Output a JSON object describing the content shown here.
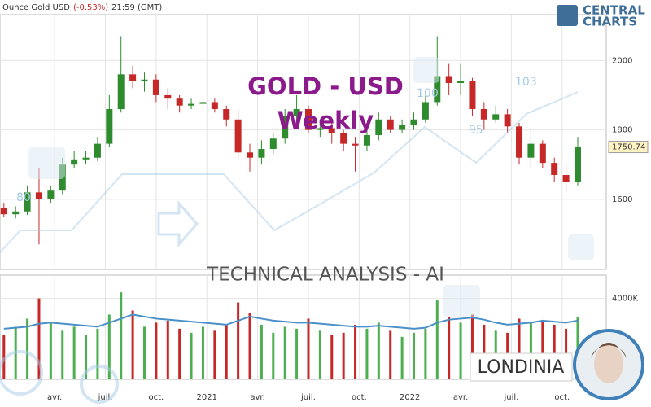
{
  "header": {
    "instrument": "Ounce Gold USD",
    "change": "(-0.53%)",
    "time": "21:59 (GMT)"
  },
  "branding": {
    "line1": "CENTRAL",
    "line2": "CHARTS",
    "footer": "LONDINIA"
  },
  "watermark": {
    "title": "GOLD - USD",
    "subtitle": "Weekly",
    "banner": "TECHNICAL  ANALYSIS - AI",
    "levels": [
      "80",
      "100",
      "95",
      "103"
    ]
  },
  "chart_data": [
    {
      "type": "candlestick",
      "up_color": "#2e8b2e",
      "down_color": "#c62828",
      "grid": true,
      "x": [
        0,
        3,
        6,
        9,
        12,
        15,
        18,
        21,
        24,
        27,
        30,
        33,
        36,
        39,
        42,
        45,
        48,
        51,
        54,
        57,
        60,
        63,
        66,
        69,
        72,
        75,
        78,
        81,
        84,
        87,
        90,
        93,
        96,
        99,
        102,
        105,
        108,
        111,
        114,
        117,
        120,
        123,
        126,
        129,
        132,
        135,
        138,
        141,
        144,
        147
      ],
      "open": [
        1575,
        1557,
        1565,
        1620,
        1600,
        1625,
        1700,
        1715,
        1720,
        1760,
        1860,
        1960,
        1940,
        1945,
        1900,
        1890,
        1870,
        1875,
        1880,
        1860,
        1830,
        1735,
        1720,
        1745,
        1775,
        1840,
        1860,
        1800,
        1805,
        1790,
        1760,
        1755,
        1785,
        1830,
        1800,
        1815,
        1830,
        1880,
        1955,
        1935,
        1940,
        1860,
        1830,
        1845,
        1810,
        1720,
        1760,
        1705,
        1670,
        1650
      ],
      "high": [
        1590,
        1580,
        1640,
        1690,
        1640,
        1720,
        1740,
        1740,
        1780,
        1900,
        2070,
        1985,
        1965,
        1960,
        1920,
        1900,
        1890,
        1900,
        1890,
        1870,
        1860,
        1760,
        1770,
        1790,
        1860,
        1900,
        1870,
        1830,
        1820,
        1800,
        1780,
        1800,
        1850,
        1840,
        1830,
        1850,
        1900,
        2070,
        1990,
        1990,
        1950,
        1880,
        1870,
        1860,
        1820,
        1800,
        1770,
        1720,
        1700,
        1780
      ],
      "low": [
        1550,
        1545,
        1555,
        1470,
        1590,
        1615,
        1690,
        1700,
        1710,
        1750,
        1850,
        1920,
        1910,
        1880,
        1860,
        1850,
        1860,
        1850,
        1850,
        1810,
        1720,
        1680,
        1700,
        1730,
        1760,
        1820,
        1790,
        1780,
        1760,
        1740,
        1680,
        1740,
        1770,
        1790,
        1790,
        1800,
        1820,
        1870,
        1900,
        1900,
        1840,
        1800,
        1820,
        1790,
        1700,
        1690,
        1690,
        1650,
        1620,
        1640
      ],
      "close": [
        1557,
        1565,
        1620,
        1600,
        1625,
        1700,
        1715,
        1720,
        1760,
        1860,
        1960,
        1940,
        1945,
        1900,
        1890,
        1870,
        1875,
        1880,
        1860,
        1830,
        1735,
        1720,
        1745,
        1775,
        1840,
        1860,
        1800,
        1805,
        1790,
        1760,
        1755,
        1785,
        1830,
        1800,
        1815,
        1830,
        1880,
        1955,
        1935,
        1940,
        1860,
        1830,
        1845,
        1810,
        1720,
        1760,
        1705,
        1670,
        1650,
        1750.74
      ],
      "last_price": 1750.74,
      "xlim": [
        -1,
        154.3
      ],
      "ylim": [
        1398,
        2132
      ],
      "yticks": [
        1600,
        1800,
        2000
      ],
      "xticks": [
        {
          "value": 13,
          "label": "avr."
        },
        {
          "value": 26,
          "label": "juil."
        },
        {
          "value": 39,
          "label": "oct."
        },
        {
          "value": 52,
          "label": "2021"
        },
        {
          "value": 65,
          "label": "avr."
        },
        {
          "value": 78,
          "label": "juil."
        },
        {
          "value": 91,
          "label": "oct."
        },
        {
          "value": 104,
          "label": "2022"
        },
        {
          "value": 117,
          "label": "avr."
        },
        {
          "value": 130,
          "label": "juil."
        },
        {
          "value": 143,
          "label": "oct."
        }
      ]
    },
    {
      "type": "bar",
      "grid": true,
      "x": [
        0,
        3,
        6,
        9,
        12,
        15,
        18,
        21,
        24,
        27,
        30,
        33,
        36,
        39,
        42,
        45,
        48,
        51,
        54,
        57,
        60,
        63,
        66,
        69,
        72,
        75,
        78,
        81,
        84,
        87,
        90,
        93,
        96,
        99,
        102,
        105,
        108,
        111,
        114,
        117,
        120,
        123,
        126,
        129,
        132,
        135,
        138,
        141,
        144,
        147
      ],
      "values": [
        2200,
        2600,
        3000,
        4000,
        2800,
        2400,
        2600,
        2200,
        2500,
        3200,
        4300,
        3400,
        2600,
        2800,
        2900,
        2500,
        2300,
        2600,
        2400,
        2700,
        3800,
        3300,
        2700,
        2300,
        2600,
        2500,
        3000,
        2400,
        2200,
        2300,
        2700,
        2500,
        2800,
        2400,
        2100,
        2300,
        2500,
        3900,
        3100,
        2800,
        3200,
        2700,
        2400,
        2300,
        3000,
        2800,
        2900,
        2700,
        2500,
        3100
      ],
      "line": [
        2500,
        2550,
        2600,
        2750,
        2800,
        2750,
        2700,
        2650,
        2600,
        2800,
        3000,
        3200,
        3100,
        3000,
        2950,
        2900,
        2850,
        2800,
        2750,
        2700,
        2900,
        3100,
        3000,
        2900,
        2850,
        2800,
        2800,
        2750,
        2700,
        2650,
        2600,
        2600,
        2650,
        2600,
        2550,
        2500,
        2550,
        2800,
        2950,
        3000,
        3050,
        2950,
        2800,
        2700,
        2750,
        2800,
        2900,
        2850,
        2800,
        2900
      ],
      "line_color": "#4a90c8",
      "xlim": [
        -1,
        154.3
      ],
      "ylim": [
        0,
        5150
      ],
      "yticks": [
        {
          "value": 4000,
          "label": "4000K"
        }
      ]
    }
  ]
}
